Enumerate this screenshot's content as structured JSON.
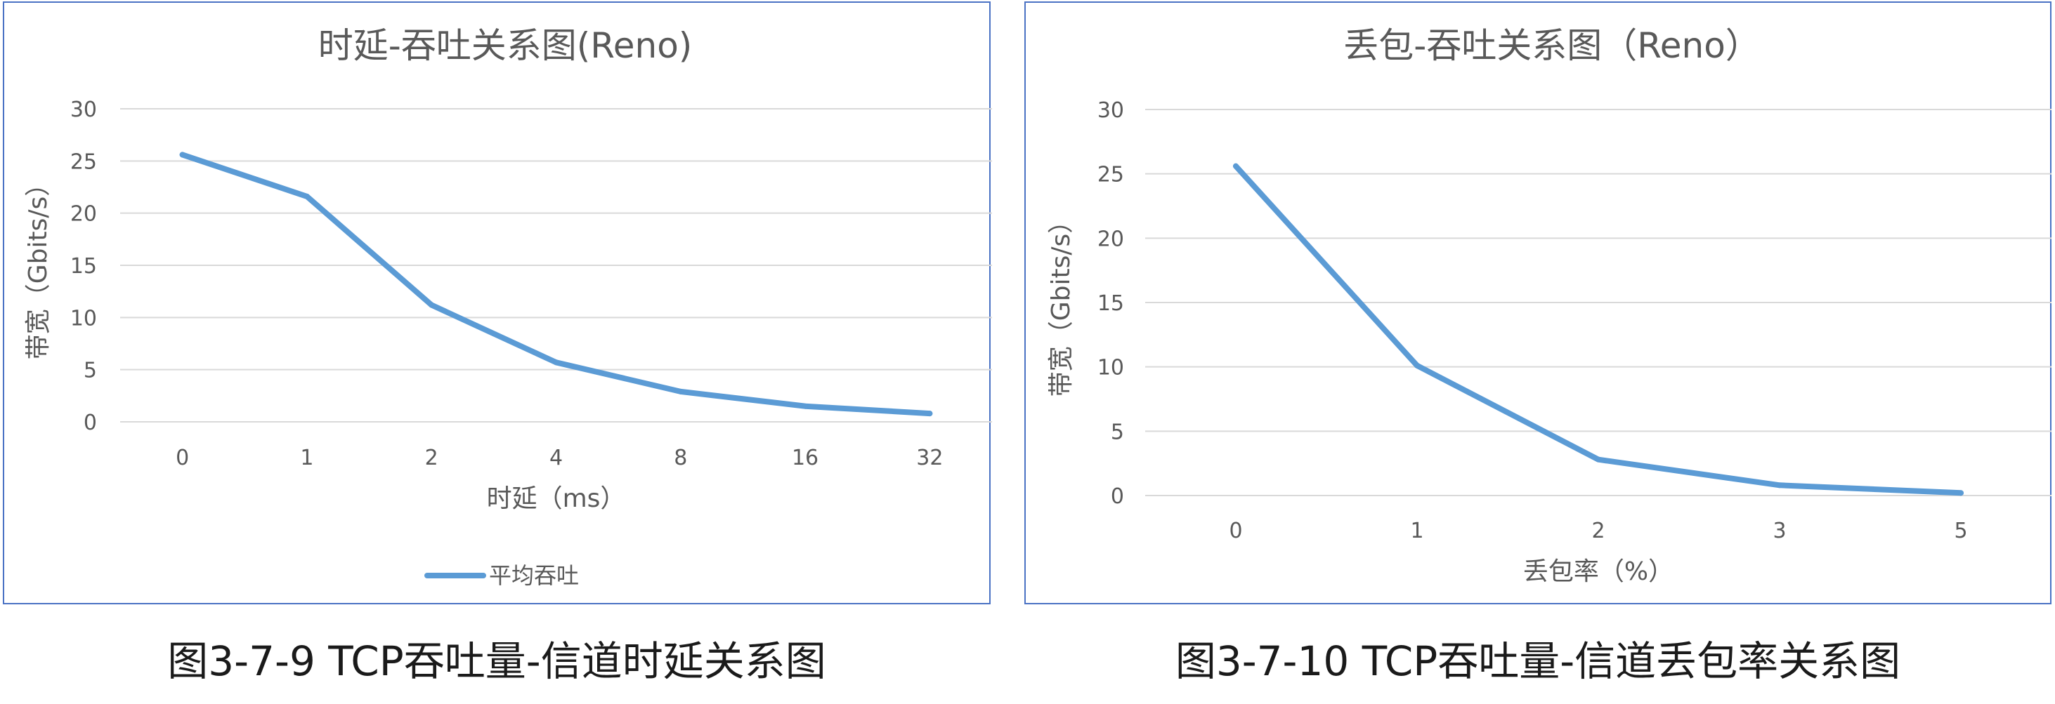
{
  "chart_data": [
    {
      "type": "line",
      "title": "时延-吞吐关系图(Reno)",
      "xlabel": "时延（ms）",
      "ylabel": "带宽（Gbits/s）",
      "categories": [
        "0",
        "1",
        "2",
        "4",
        "8",
        "16",
        "32"
      ],
      "series": [
        {
          "name": "平均吞吐",
          "values": [
            25.6,
            21.6,
            11.2,
            5.7,
            2.9,
            1.5,
            0.8
          ]
        }
      ],
      "ylim": [
        0,
        30
      ],
      "yticks": [
        "0",
        "5",
        "10",
        "15",
        "20",
        "25",
        "30"
      ],
      "grid": true,
      "legend": "bottom",
      "color": "#5b9bd5"
    },
    {
      "type": "line",
      "title": "丢包-吞吐关系图（Reno）",
      "xlabel": "丢包率（%）",
      "ylabel": "带宽（Gbits/s）",
      "categories": [
        "0",
        "1",
        "2",
        "3",
        "5"
      ],
      "series": [
        {
          "values": [
            25.6,
            10.1,
            2.8,
            0.8,
            0.2
          ]
        }
      ],
      "ylim": [
        0,
        30
      ],
      "yticks": [
        "0",
        "5",
        "10",
        "15",
        "20",
        "25",
        "30"
      ],
      "grid": true,
      "legend": "none",
      "color": "#5b9bd5"
    }
  ],
  "captions": {
    "left": "图3-7-9 TCP吞吐量-信道时延关系图",
    "right": "图3-7-10 TCP吞吐量-信道丢包率关系图"
  }
}
